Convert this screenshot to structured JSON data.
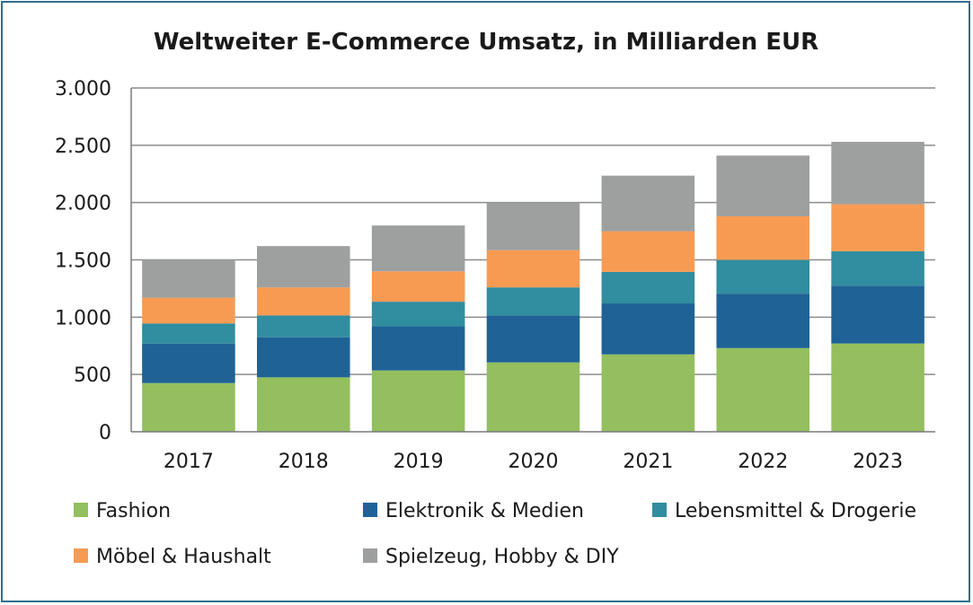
{
  "chart_data": {
    "type": "bar",
    "stacked": true,
    "title": "Weltweiter E-Commerce Umsatz, in Milliarden EUR",
    "xlabel": "",
    "ylabel": "",
    "categories": [
      "2017",
      "2018",
      "2019",
      "2020",
      "2021",
      "2022",
      "2023"
    ],
    "ylim": [
      0,
      3000
    ],
    "yticks": [
      0,
      500,
      1000,
      1500,
      2000,
      2500,
      3000
    ],
    "ytick_labels": [
      "0",
      "500",
      "1.000",
      "1.500",
      "2.000",
      "2.500",
      "3.000"
    ],
    "grid": true,
    "legend_position": "bottom",
    "series": [
      {
        "name": "Fashion",
        "color": "#93bf5e",
        "values": [
          425,
          475,
          535,
          605,
          675,
          730,
          770
        ]
      },
      {
        "name": "Elektronik & Medien",
        "color": "#1f6396",
        "values": [
          345,
          350,
          385,
          410,
          445,
          475,
          505
        ]
      },
      {
        "name": "Lebensmittel & Drogerie",
        "color": "#318da0",
        "values": [
          175,
          190,
          215,
          245,
          275,
          295,
          300
        ]
      },
      {
        "name": "Möbel & Haushalt",
        "color": "#f79b53",
        "values": [
          225,
          245,
          265,
          325,
          355,
          380,
          410
        ]
      },
      {
        "name": "Spielzeug, Hobby & DIY",
        "color": "#9ea0a0",
        "values": [
          330,
          360,
          400,
          415,
          485,
          530,
          545
        ]
      }
    ]
  }
}
